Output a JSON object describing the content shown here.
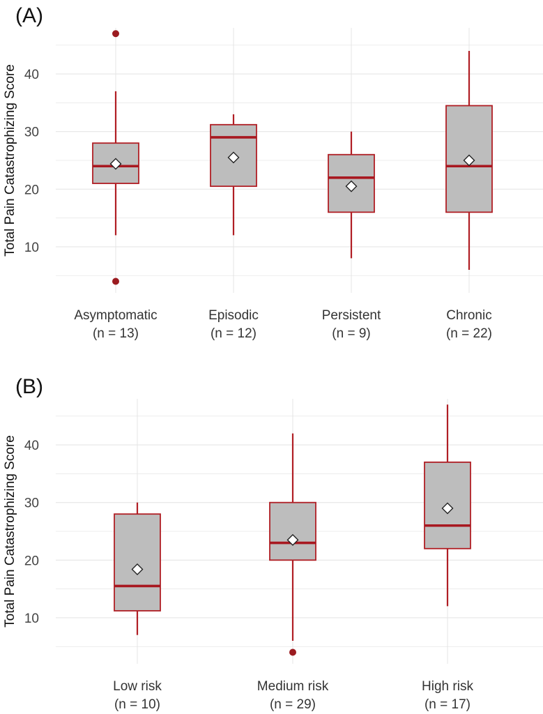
{
  "colors": {
    "box_fill": "#bdbdbd",
    "box_stroke": "#b01e24",
    "median": "#a81820",
    "whisker": "#b01e24",
    "outlier": "#9b1b20",
    "mean_marker": "#ffffff",
    "grid": "#e6e6e6"
  },
  "chart_data": [
    {
      "type": "box",
      "panel_label": "(A)",
      "ylabel": "Total Pain Catastrophizing Score",
      "ylim": [
        2,
        48
      ],
      "yticks": [
        10,
        20,
        30,
        40
      ],
      "grid": true,
      "categories": [
        {
          "label": "Asymptomatic",
          "n_label": "(n = 13)",
          "whisker_low": 12,
          "q1": 21,
          "median": 24,
          "q3": 28,
          "whisker_high": 37,
          "mean": 24.4,
          "outliers": [
            47,
            4
          ]
        },
        {
          "label": "Episodic",
          "n_label": "(n = 12)",
          "whisker_low": 12,
          "q1": 20.5,
          "median": 29,
          "q3": 31.2,
          "whisker_high": 33,
          "mean": 25.5,
          "outliers": []
        },
        {
          "label": "Persistent",
          "n_label": "(n = 9)",
          "whisker_low": 8,
          "q1": 16,
          "median": 22,
          "q3": 26,
          "whisker_high": 30,
          "mean": 20.5,
          "outliers": []
        },
        {
          "label": "Chronic",
          "n_label": "(n = 22)",
          "whisker_low": 6,
          "q1": 16,
          "median": 24,
          "q3": 34.5,
          "whisker_high": 44,
          "mean": 25,
          "outliers": []
        }
      ]
    },
    {
      "type": "box",
      "panel_label": "(B)",
      "ylabel": "Total Pain Catastrophizing Score",
      "ylim": [
        2,
        48
      ],
      "yticks": [
        10,
        20,
        30,
        40
      ],
      "grid": true,
      "categories": [
        {
          "label": "Low risk",
          "n_label": "(n = 10)",
          "whisker_low": 7,
          "q1": 11.2,
          "median": 15.5,
          "q3": 28,
          "whisker_high": 30,
          "mean": 18.4,
          "outliers": []
        },
        {
          "label": "Medium risk",
          "n_label": "(n = 29)",
          "whisker_low": 6,
          "q1": 20,
          "median": 23,
          "q3": 30,
          "whisker_high": 42,
          "mean": 23.5,
          "outliers": [
            4
          ]
        },
        {
          "label": "High risk",
          "n_label": "(n = 17)",
          "whisker_low": 12,
          "q1": 22,
          "median": 26,
          "q3": 37,
          "whisker_high": 47,
          "mean": 29,
          "outliers": []
        }
      ]
    }
  ]
}
